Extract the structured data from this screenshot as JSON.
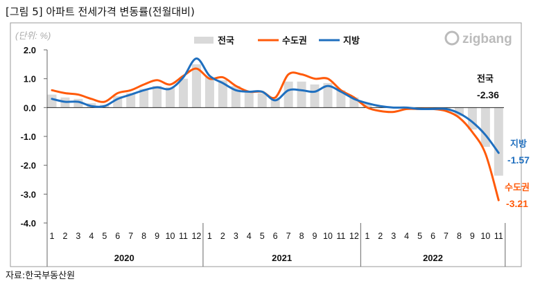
{
  "title": "[그림 5]  아파트  전세가격  변동률(전월대비)",
  "source": "자료:한국부동산원",
  "logo": "zigbang",
  "chart_data": {
    "type": "bar+line",
    "unit_label": "(단위: %)",
    "ylim": [
      -4.0,
      2.0
    ],
    "yticks": [
      "2.0",
      "1.0",
      "0.0",
      "-1.0",
      "-2.0",
      "-3.0",
      "-4.0"
    ],
    "ytick_values": [
      2,
      1,
      0,
      -1,
      -2,
      -3,
      -4
    ],
    "categories": [
      "1",
      "2",
      "3",
      "4",
      "5",
      "6",
      "7",
      "8",
      "9",
      "10",
      "11",
      "12",
      "1",
      "2",
      "3",
      "4",
      "5",
      "6",
      "7",
      "8",
      "9",
      "10",
      "11",
      "12",
      "1",
      "2",
      "3",
      "4",
      "5",
      "6",
      "7",
      "8",
      "9",
      "10",
      "11"
    ],
    "years": [
      {
        "label": "2020",
        "months": 12
      },
      {
        "label": "2021",
        "months": 12
      },
      {
        "label": "2022",
        "months": 11
      }
    ],
    "legend_position": "top-center",
    "series": [
      {
        "name": "전국",
        "type": "bar",
        "color": "#d9d9d9",
        "values": [
          0.45,
          0.35,
          0.3,
          0.15,
          0.1,
          0.4,
          0.5,
          0.65,
          0.75,
          0.7,
          1.0,
          1.5,
          1.05,
          0.95,
          0.75,
          0.55,
          0.5,
          0.35,
          0.9,
          0.9,
          0.8,
          0.85,
          0.6,
          0.35,
          0.15,
          0.05,
          0.0,
          -0.02,
          -0.05,
          -0.05,
          -0.1,
          -0.3,
          -0.76,
          -1.36,
          -2.36
        ]
      },
      {
        "name": "수도권",
        "type": "line",
        "color": "#ff5a0a",
        "values": [
          0.6,
          0.5,
          0.45,
          0.3,
          0.2,
          0.5,
          0.6,
          0.8,
          0.95,
          0.8,
          1.1,
          1.35,
          1.0,
          1.05,
          0.75,
          0.55,
          0.55,
          0.35,
          1.15,
          1.15,
          1.0,
          1.0,
          0.6,
          0.35,
          0.0,
          -0.12,
          -0.15,
          -0.05,
          -0.05,
          -0.05,
          -0.12,
          -0.35,
          -0.85,
          -1.6,
          -3.21
        ]
      },
      {
        "name": "지방",
        "type": "line",
        "color": "#1f6fbf",
        "values": [
          0.3,
          0.2,
          0.2,
          0.05,
          0.05,
          0.3,
          0.45,
          0.6,
          0.7,
          0.65,
          1.05,
          1.7,
          1.1,
          0.85,
          0.6,
          0.55,
          0.55,
          0.25,
          0.6,
          0.6,
          0.55,
          0.75,
          0.55,
          0.3,
          0.15,
          0.05,
          0.0,
          0.0,
          -0.05,
          -0.05,
          -0.05,
          -0.2,
          -0.5,
          -0.95,
          -1.57
        ]
      }
    ],
    "annotations": [
      {
        "series": "전국",
        "name": "전국",
        "value": "-2.36",
        "color": "#111111"
      },
      {
        "series": "지방",
        "name": "지방",
        "value": "-1.57",
        "color": "#1f6fbf"
      },
      {
        "series": "수도권",
        "name": "수도권",
        "value": "-3.21",
        "color": "#ff5a0a"
      }
    ]
  }
}
